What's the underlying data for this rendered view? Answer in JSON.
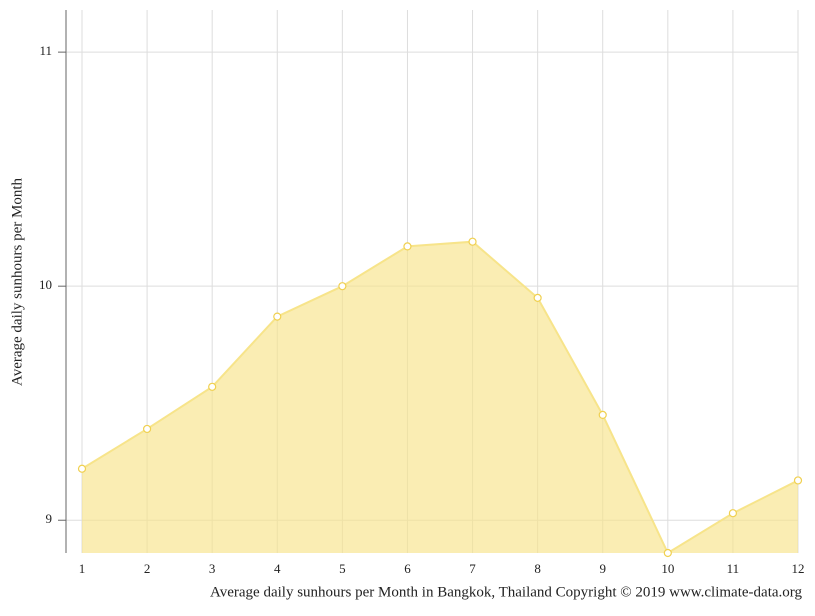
{
  "chart_data": {
    "type": "area",
    "title": "Average daily sunhours per Month in Bangkok, Thailand Copyright © 2019 www.climate-data.org",
    "y_label": "Average daily sunhours per Month",
    "x": [
      1,
      2,
      3,
      4,
      5,
      6,
      7,
      8,
      9,
      10,
      11,
      12
    ],
    "values": [
      9.22,
      9.39,
      9.57,
      9.87,
      10.0,
      10.17,
      10.19,
      9.95,
      9.45,
      8.86,
      9.03,
      9.17
    ],
    "color": "#f7e48a",
    "xlim": [
      1,
      12
    ],
    "xticks": [
      1,
      2,
      3,
      4,
      5,
      6,
      7,
      8,
      9,
      10,
      11,
      12
    ],
    "ylim": [
      8.86,
      11.18
    ],
    "yticks": [
      9,
      10,
      11
    ],
    "grid": true
  }
}
